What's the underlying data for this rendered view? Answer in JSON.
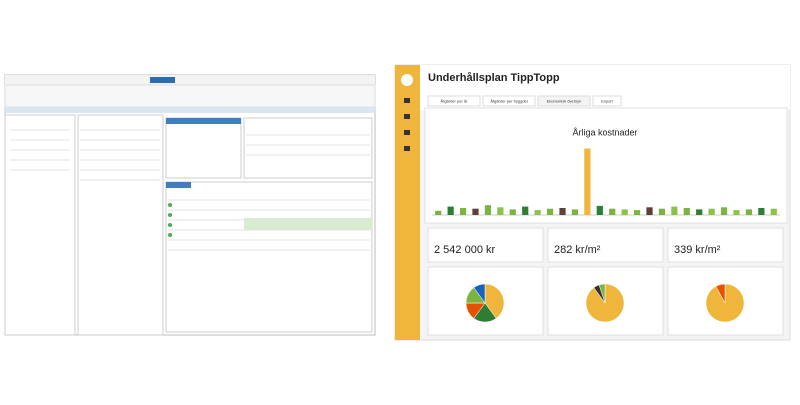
{
  "right_app": {
    "title": "Underhållsplan TippTopp",
    "tabs": [
      "Åtgärder per år",
      "Åtgärder per byggdel",
      "Ekonomisk översyn",
      "Export"
    ],
    "cost_chart": {
      "type": "bar",
      "title": "Årliga kostnader",
      "ylim": [
        0,
        100
      ],
      "values": [
        6,
        12,
        10,
        9,
        14,
        11,
        8,
        12,
        7,
        9,
        10,
        8,
        95,
        13,
        9,
        8,
        7,
        11,
        9,
        12,
        10,
        8,
        9,
        11,
        7,
        8,
        10,
        9
      ],
      "colors": [
        "#7cb342",
        "#2e7d32",
        "#7cb342",
        "#5d4037",
        "#7cb342",
        "#8bc34a",
        "#7cb342",
        "#2e7d32",
        "#8bc34a",
        "#7cb342",
        "#5d4037",
        "#7cb342",
        "#f0b63c",
        "#2e7d32",
        "#7cb342",
        "#8bc34a",
        "#7cb342",
        "#5d4037",
        "#7cb342",
        "#8bc34a",
        "#7cb342",
        "#2e7d32",
        "#8bc34a",
        "#7cb342",
        "#8bc34a",
        "#7cb342",
        "#2e7d32",
        "#8bc34a"
      ]
    },
    "kpis": [
      "2 542 000 kr",
      "282 kr/m²",
      "339 kr/m²"
    ],
    "pies": [
      {
        "values": [
          40,
          20,
          15,
          15,
          10
        ],
        "colors": [
          "#f0b63c",
          "#2e7d32",
          "#e65100",
          "#7cb342",
          "#1565c0"
        ]
      },
      {
        "values": [
          90,
          5,
          5
        ],
        "colors": [
          "#f0b63c",
          "#333333",
          "#7cb342"
        ]
      },
      {
        "values": [
          92,
          8
        ],
        "colors": [
          "#f0b63c",
          "#e65100"
        ]
      }
    ]
  }
}
